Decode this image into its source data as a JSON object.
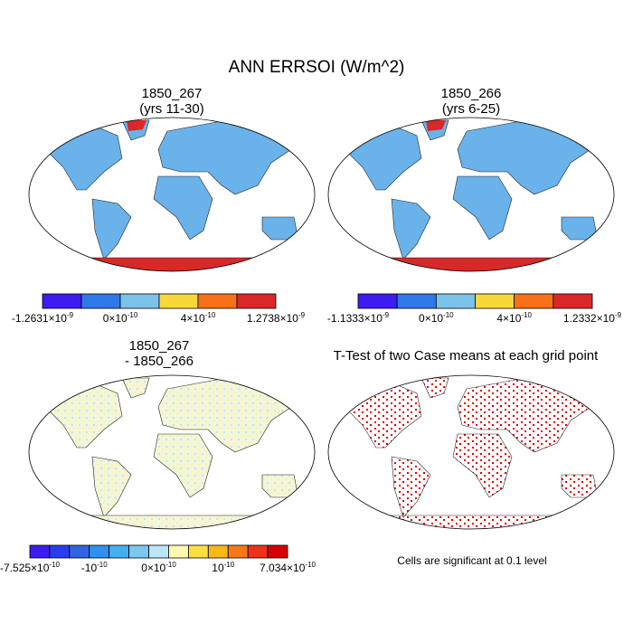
{
  "title": "ANN ERRSOI (W/m^2)",
  "panels": [
    {
      "title": [
        "1850_267",
        "(yrs 11-30)"
      ],
      "colorbar": {
        "colors": [
          "#3c1cf0",
          "#2f78e8",
          "#7ac2ea",
          "#f8d838",
          "#f87018",
          "#d82828"
        ],
        "labels": [
          {
            "base": "-1.2631×10",
            "exponent": "-9"
          },
          {
            "base": "0×10",
            "exponent": "-10"
          },
          {
            "base": "4×10",
            "exponent": "-10"
          },
          {
            "base": "1.2738×10",
            "exponent": "-9"
          }
        ]
      }
    },
    {
      "title": [
        "1850_266",
        "(yrs 6-25)"
      ],
      "colorbar": {
        "colors": [
          "#3c1cf0",
          "#2f78e8",
          "#7ac2ea",
          "#f8d838",
          "#f87018",
          "#d82828"
        ],
        "labels": [
          {
            "base": "-1.1333×10",
            "exponent": "-9"
          },
          {
            "base": "0×10",
            "exponent": "-10"
          },
          {
            "base": "4×10",
            "exponent": "-10"
          },
          {
            "base": "1.2332×10",
            "exponent": "-9"
          }
        ]
      }
    },
    {
      "title": [
        "1850_267",
        "- 1850_266"
      ],
      "colorbar": {
        "colors": [
          "#3c1cf0",
          "#2a3cf0",
          "#3064e0",
          "#2f90f0",
          "#40b0f0",
          "#78c8f0",
          "#bce6f8",
          "#fff8b0",
          "#f8e040",
          "#f8b818",
          "#f87818",
          "#f03018",
          "#d80000"
        ],
        "labels": [
          {
            "base": "-7.525×10",
            "exponent": "-10"
          },
          {
            "base": "-10",
            "exponent": "-10"
          },
          {
            "base": "0×10",
            "exponent": "-10"
          },
          {
            "base": "10",
            "exponent": "-10"
          },
          {
            "base": "7.034×10",
            "exponent": "-10"
          }
        ]
      }
    },
    {
      "title": [
        "T-Test of two Case means at each grid point"
      ],
      "note": "Cells are significant at 0.1 level"
    }
  ]
}
